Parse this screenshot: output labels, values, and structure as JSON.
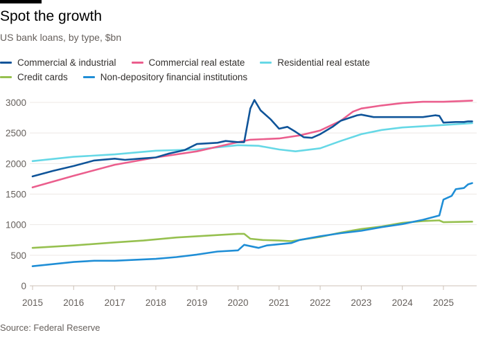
{
  "title": "Spot the growth",
  "subtitle": "US bank loans, by type, $bn",
  "source": "Source: Federal Reserve",
  "chart_data": {
    "type": "line",
    "title": "Spot the growth",
    "subtitle": "US bank loans, by type, $bn",
    "xlim": [
      2015,
      2025.75
    ],
    "ylim": [
      0,
      3000
    ],
    "x_ticks": [
      "2015",
      "2016",
      "2017",
      "2018",
      "2019",
      "2020",
      "2021",
      "2022",
      "2023",
      "2024",
      "2025"
    ],
    "y_ticks": [
      "0",
      "500",
      "1000",
      "1500",
      "2000",
      "2500",
      "3000"
    ],
    "grid": "horizontal",
    "legend_position": "top",
    "series": [
      {
        "name": "Commercial & industrial",
        "color": "#0f5499",
        "points": [
          [
            2015,
            1790
          ],
          [
            2015.5,
            1880
          ],
          [
            2016,
            1960
          ],
          [
            2016.5,
            2050
          ],
          [
            2017,
            2080
          ],
          [
            2017.25,
            2060
          ],
          [
            2017.6,
            2080
          ],
          [
            2018,
            2100
          ],
          [
            2018.3,
            2160
          ],
          [
            2018.7,
            2220
          ],
          [
            2019,
            2320
          ],
          [
            2019.5,
            2340
          ],
          [
            2019.7,
            2370
          ],
          [
            2020,
            2350
          ],
          [
            2020.15,
            2350
          ],
          [
            2020.3,
            2900
          ],
          [
            2020.4,
            3040
          ],
          [
            2020.55,
            2870
          ],
          [
            2020.8,
            2720
          ],
          [
            2021,
            2570
          ],
          [
            2021.2,
            2600
          ],
          [
            2021.4,
            2520
          ],
          [
            2021.6,
            2430
          ],
          [
            2021.8,
            2420
          ],
          [
            2022,
            2480
          ],
          [
            2022.3,
            2600
          ],
          [
            2022.5,
            2700
          ],
          [
            2022.9,
            2790
          ],
          [
            2023,
            2800
          ],
          [
            2023.3,
            2760
          ],
          [
            2023.5,
            2760
          ],
          [
            2024,
            2760
          ],
          [
            2024.5,
            2760
          ],
          [
            2024.8,
            2790
          ],
          [
            2024.9,
            2780
          ],
          [
            2025,
            2670
          ],
          [
            2025.3,
            2680
          ],
          [
            2025.5,
            2680
          ],
          [
            2025.6,
            2690
          ],
          [
            2025.7,
            2690
          ]
        ]
      },
      {
        "name": "Commercial real estate",
        "color": "#eb5e8d",
        "points": [
          [
            2015,
            1610
          ],
          [
            2016,
            1800
          ],
          [
            2017,
            1980
          ],
          [
            2018,
            2100
          ],
          [
            2019,
            2200
          ],
          [
            2020,
            2350
          ],
          [
            2020.3,
            2390
          ],
          [
            2021,
            2410
          ],
          [
            2021.5,
            2460
          ],
          [
            2022,
            2540
          ],
          [
            2022.5,
            2700
          ],
          [
            2022.8,
            2850
          ],
          [
            2023,
            2900
          ],
          [
            2023.5,
            2950
          ],
          [
            2024,
            2990
          ],
          [
            2024.5,
            3010
          ],
          [
            2025,
            3010
          ],
          [
            2025.7,
            3030
          ]
        ]
      },
      {
        "name": "Residential real estate",
        "color": "#66d8e6",
        "points": [
          [
            2015,
            2040
          ],
          [
            2016,
            2110
          ],
          [
            2017,
            2150
          ],
          [
            2018,
            2210
          ],
          [
            2019,
            2230
          ],
          [
            2020,
            2300
          ],
          [
            2020.5,
            2290
          ],
          [
            2021,
            2230
          ],
          [
            2021.4,
            2200
          ],
          [
            2022,
            2250
          ],
          [
            2022.5,
            2370
          ],
          [
            2023,
            2480
          ],
          [
            2023.5,
            2550
          ],
          [
            2024,
            2590
          ],
          [
            2024.5,
            2610
          ],
          [
            2025,
            2630
          ],
          [
            2025.7,
            2660
          ]
        ]
      },
      {
        "name": "Credit cards",
        "color": "#96c04f",
        "points": [
          [
            2015,
            620
          ],
          [
            2016,
            660
          ],
          [
            2017,
            710
          ],
          [
            2017.7,
            740
          ],
          [
            2018,
            760
          ],
          [
            2018.5,
            790
          ],
          [
            2019,
            810
          ],
          [
            2020,
            850
          ],
          [
            2020.15,
            850
          ],
          [
            2020.3,
            770
          ],
          [
            2020.6,
            750
          ],
          [
            2021,
            740
          ],
          [
            2021.3,
            730
          ],
          [
            2022,
            800
          ],
          [
            2022.5,
            870
          ],
          [
            2023,
            930
          ],
          [
            2023.5,
            970
          ],
          [
            2024,
            1030
          ],
          [
            2024.5,
            1060
          ],
          [
            2024.9,
            1070
          ],
          [
            2025,
            1040
          ],
          [
            2025.7,
            1050
          ]
        ]
      },
      {
        "name": "Non-depository financial institutions",
        "color": "#1f8ed6",
        "points": [
          [
            2015,
            320
          ],
          [
            2016,
            390
          ],
          [
            2016.5,
            410
          ],
          [
            2017,
            410
          ],
          [
            2018,
            440
          ],
          [
            2018.5,
            470
          ],
          [
            2019,
            510
          ],
          [
            2019.5,
            560
          ],
          [
            2020,
            580
          ],
          [
            2020.15,
            670
          ],
          [
            2020.5,
            620
          ],
          [
            2020.7,
            660
          ],
          [
            2021,
            680
          ],
          [
            2021.3,
            700
          ],
          [
            2021.5,
            750
          ],
          [
            2022,
            810
          ],
          [
            2022.5,
            860
          ],
          [
            2023,
            900
          ],
          [
            2023.5,
            960
          ],
          [
            2024,
            1010
          ],
          [
            2024.5,
            1080
          ],
          [
            2024.9,
            1150
          ],
          [
            2025,
            1410
          ],
          [
            2025.2,
            1470
          ],
          [
            2025.3,
            1580
          ],
          [
            2025.5,
            1600
          ],
          [
            2025.6,
            1660
          ],
          [
            2025.7,
            1680
          ]
        ]
      }
    ]
  }
}
